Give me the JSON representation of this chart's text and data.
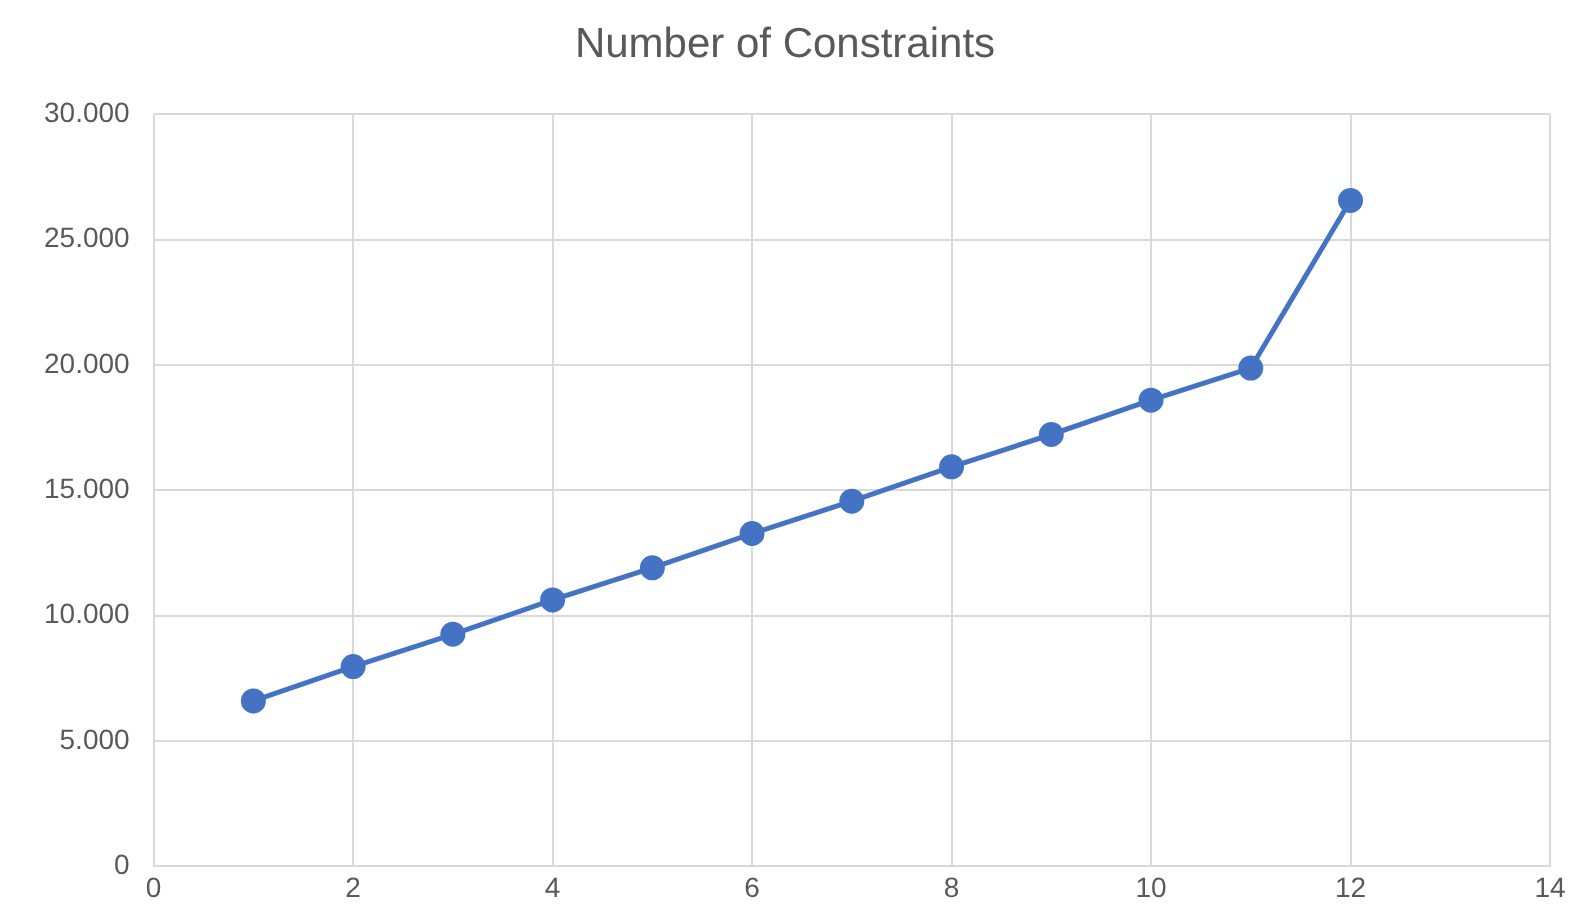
{
  "chart_data": {
    "type": "line",
    "title": "Number of Constraints",
    "x": [
      1,
      2,
      3,
      4,
      5,
      6,
      7,
      8,
      9,
      10,
      11,
      12
    ],
    "series": [
      {
        "color": "#4472c4",
        "values": [
          6600,
          7970,
          9260,
          10630,
          11910,
          13280,
          14570,
          15940,
          17230,
          18600,
          19880,
          26570
        ]
      }
    ],
    "xlim": [
      0,
      14
    ],
    "xticks": [
      0,
      2,
      4,
      6,
      8,
      10,
      12,
      14
    ],
    "ylim": [
      0,
      30000
    ],
    "yticks": [
      0,
      {
        "value": 5000,
        "label": "5.000"
      },
      {
        "value": 10000,
        "label": "10.000"
      },
      {
        "value": 15000,
        "label": "15.000"
      },
      {
        "value": 20000,
        "label": "20.000"
      },
      {
        "value": 25000,
        "label": "25.000"
      },
      {
        "value": 30000,
        "label": "30.000"
      }
    ],
    "grid": true,
    "legend": false,
    "marker": "circle",
    "line_style": "solid"
  }
}
